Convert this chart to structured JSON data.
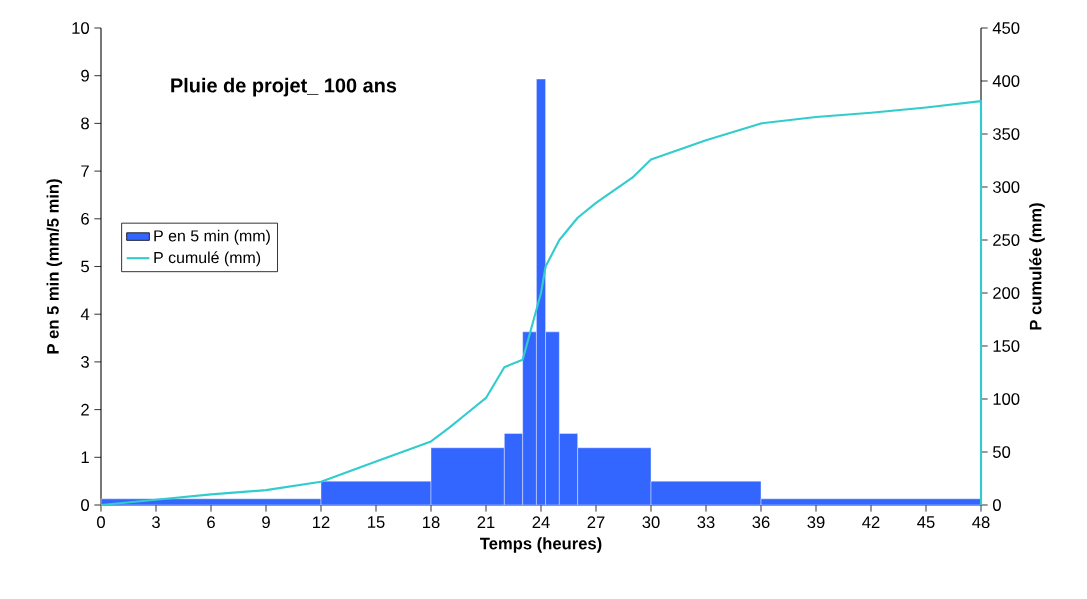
{
  "chart_data": {
    "type": "histogram",
    "title": "Pluie de projet_ 100 ans",
    "xlabel": "Temps (heures)",
    "ylabel": "P en 5 min (mm/5 min)",
    "y2label": "P cumulée (mm)",
    "xlim": [
      0,
      48
    ],
    "xticks": [
      0,
      3,
      6,
      9,
      12,
      15,
      18,
      21,
      24,
      27,
      30,
      33,
      36,
      39,
      42,
      45,
      48
    ],
    "ylim": [
      0,
      10
    ],
    "yticks": [
      0,
      1,
      2,
      3,
      4,
      5,
      6,
      7,
      8,
      9,
      10
    ],
    "y2lim": [
      0,
      450
    ],
    "y2ticks": [
      0,
      50,
      100,
      150,
      200,
      250,
      300,
      350,
      400,
      450
    ],
    "legend": "left",
    "grid": false,
    "series": [
      {
        "name": "P en 5 min (mm)",
        "color": "#3366ff",
        "bins": [
          0,
          12,
          18,
          22,
          23,
          23.75,
          24.25,
          25,
          26,
          30,
          36,
          48
        ],
        "values": [
          0.13,
          0.5,
          1.2,
          1.5,
          3.63,
          8.93,
          3.63,
          1.5,
          1.2,
          0.5,
          0.13
        ]
      },
      {
        "name": "P cumulé (mm)",
        "type": "line",
        "axis": "y2",
        "color": "#33cccc",
        "x": [
          0,
          3,
          6,
          9,
          12,
          15,
          18,
          19,
          20,
          21,
          22,
          23,
          24,
          24.25,
          25,
          26,
          27,
          28,
          29,
          30,
          33,
          36,
          39,
          42,
          45,
          48,
          48
        ],
        "values": [
          0,
          5,
          10,
          14,
          22,
          41,
          60,
          73,
          87,
          101,
          130,
          137,
          200,
          225,
          250,
          271,
          285,
          297,
          309,
          326,
          344,
          360,
          366,
          370,
          375,
          381,
          0
        ]
      }
    ]
  }
}
